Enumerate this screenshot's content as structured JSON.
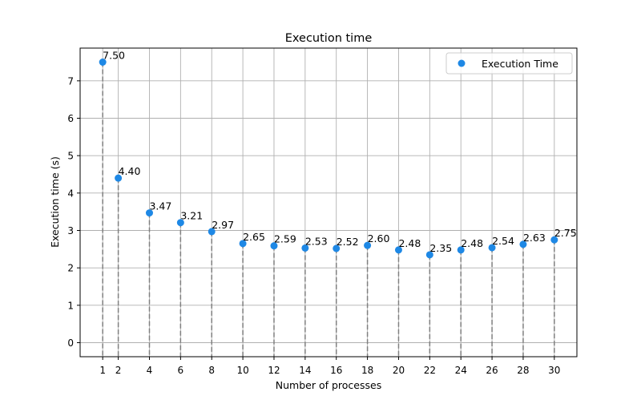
{
  "chart_data": {
    "type": "scatter",
    "title": "Execution time",
    "xlabel": "Number of processes",
    "ylabel": "Execution time (s)",
    "x": [
      1,
      2,
      4,
      6,
      8,
      10,
      12,
      14,
      16,
      18,
      20,
      22,
      24,
      26,
      28,
      30
    ],
    "series": [
      {
        "name": "Execution Time",
        "values": [
          7.5,
          4.4,
          3.47,
          3.21,
          2.97,
          2.65,
          2.59,
          2.53,
          2.52,
          2.6,
          2.48,
          2.35,
          2.48,
          2.54,
          2.63,
          2.75
        ],
        "labels": [
          "7.50",
          "4.40",
          "3.47",
          "3.21",
          "2.97",
          "2.65",
          "2.59",
          "2.53",
          "2.52",
          "2.60",
          "2.48",
          "2.35",
          "2.48",
          "2.54",
          "2.63",
          "2.75"
        ],
        "color": "#1e88e5"
      }
    ],
    "x_ticks": [
      "1",
      "2",
      "4",
      "6",
      "8",
      "10",
      "12",
      "14",
      "16",
      "18",
      "20",
      "22",
      "24",
      "26",
      "28",
      "30"
    ],
    "y_ticks": [
      "0",
      "1",
      "2",
      "3",
      "4",
      "5",
      "6",
      "7"
    ],
    "xlim": [
      -0.45,
      31.45
    ],
    "ylim": [
      -0.375,
      7.875
    ],
    "grid": true,
    "drop_lines": true,
    "drop_line_color": "#808080",
    "grid_color": "#b0b0b0",
    "legend_position": "upper-right"
  }
}
